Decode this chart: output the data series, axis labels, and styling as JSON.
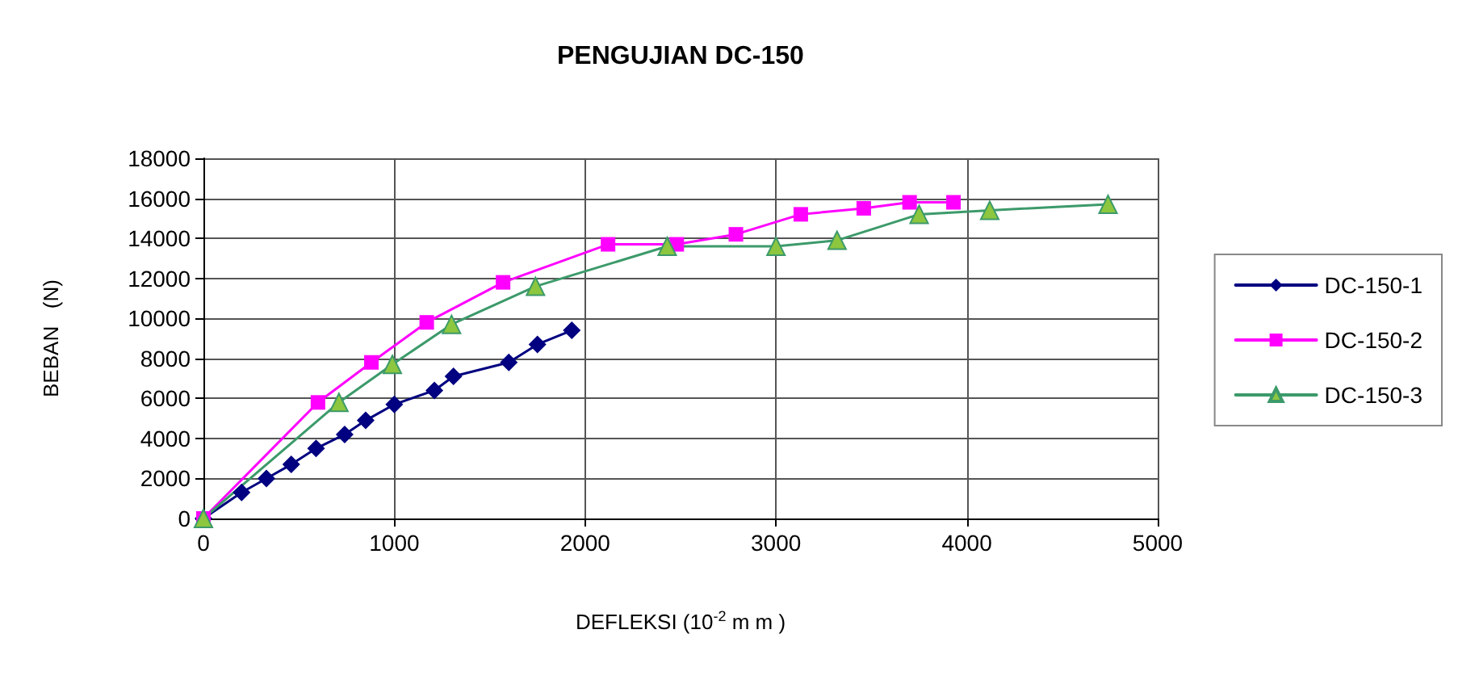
{
  "chart_data": {
    "type": "line",
    "title": "PENGUJIAN DC-150",
    "xlabel": "DEFLEKSI (10$^{-2}$ m m )",
    "ylabel": "BEBAN   (N)",
    "series": [
      {
        "name": "DC-150-1",
        "color": "#000080",
        "marker": "diamond",
        "x": [
          0,
          200,
          330,
          460,
          590,
          740,
          850,
          1000,
          1210,
          1310,
          1600,
          1750,
          1930
        ],
        "values": [
          0,
          1300,
          2000,
          2700,
          3500,
          4200,
          4900,
          5700,
          6400,
          7100,
          7800,
          8700,
          9400
        ]
      },
      {
        "name": "DC-150-2",
        "color": "#ff00ff",
        "marker": "square",
        "x": [
          0,
          600,
          880,
          1170,
          1570,
          2120,
          2480,
          2790,
          3130,
          3460,
          3700,
          3930
        ],
        "values": [
          0,
          5800,
          7800,
          9800,
          11800,
          13700,
          13700,
          14200,
          15200,
          15500,
          15800,
          15800
        ]
      },
      {
        "name": "DC-150-3",
        "color": "#3c9a6a",
        "marker": "triangle",
        "x": [
          0,
          710,
          990,
          1300,
          1740,
          2430,
          3000,
          3320,
          3750,
          4120,
          4740
        ],
        "values": [
          0,
          5800,
          7700,
          9700,
          11600,
          13600,
          13600,
          13900,
          15200,
          15400,
          15700
        ]
      }
    ],
    "xlim": [
      0,
      5000
    ],
    "xticks": [
      0,
      1000,
      2000,
      3000,
      4000,
      5000
    ],
    "ylim": [
      0,
      18000
    ],
    "yticks": [
      0,
      2000,
      4000,
      6000,
      8000,
      10000,
      12000,
      14000,
      16000,
      18000
    ],
    "grid": true,
    "legend": "right"
  }
}
